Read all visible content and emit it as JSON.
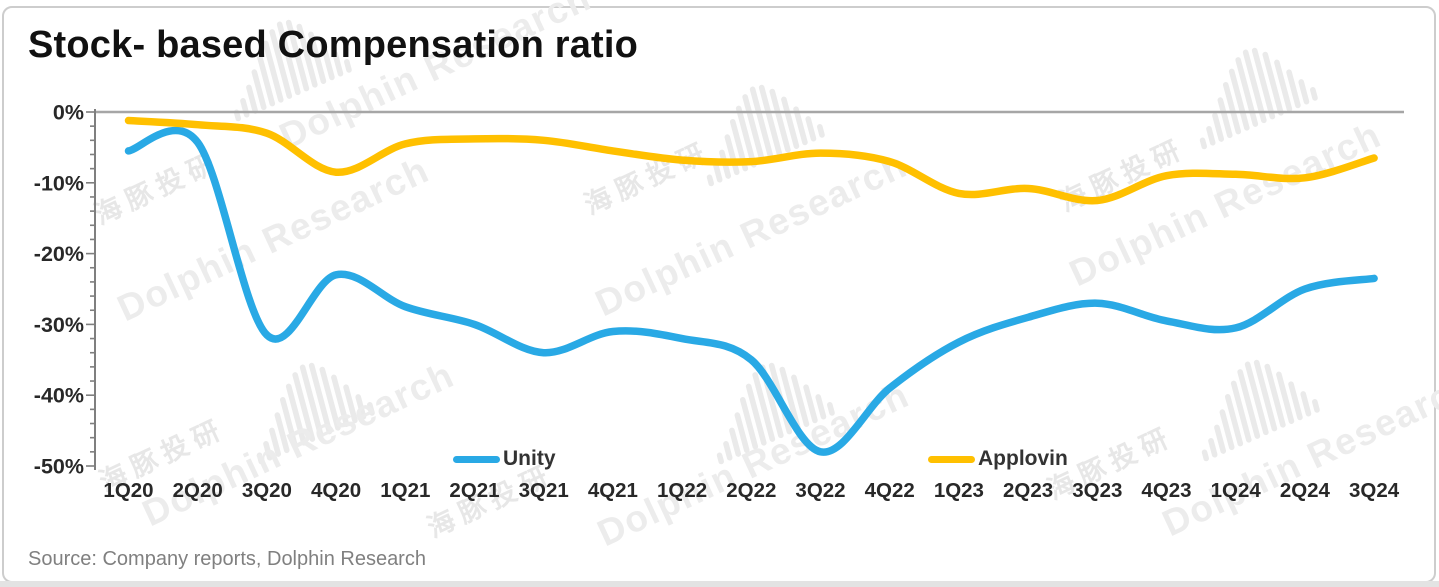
{
  "title": "Stock- based Compensation ratio",
  "source": "Source: Company reports, Dolphin Research",
  "watermark": {
    "en": "Dolphin Research",
    "zh": "海豚投研"
  },
  "colors": {
    "unity_line": "#29A9E5",
    "applovin_line": "#FFC000",
    "axis": "#7F7F7F",
    "zero_line": "#A6A6A6",
    "tick_label": "#282828",
    "title_text": "#111111",
    "source_text": "#808080",
    "watermark": "#EAEAEA"
  },
  "chart_data": {
    "type": "line",
    "title": "Stock- based Compensation ratio",
    "categories": [
      "1Q20",
      "2Q20",
      "3Q20",
      "4Q20",
      "1Q21",
      "2Q21",
      "3Q21",
      "4Q21",
      "1Q22",
      "2Q22",
      "3Q22",
      "4Q22",
      "1Q23",
      "2Q23",
      "3Q23",
      "4Q23",
      "1Q24",
      "2Q24",
      "3Q24"
    ],
    "series": [
      {
        "name": "Unity",
        "color": "#29A9E5",
        "values": [
          -5.5,
          -4.3,
          -31.5,
          -23,
          -27.5,
          -30,
          -34,
          -31,
          -32,
          -35,
          -48,
          -39,
          -32.5,
          -29,
          -27,
          -29.5,
          -30.5,
          -25,
          -23.5
        ]
      },
      {
        "name": "Applovin",
        "color": "#FFC000",
        "values": [
          -1.2,
          -1.8,
          -3,
          -8.5,
          -4.5,
          -3.8,
          -4,
          -5.5,
          -6.8,
          -7,
          -5.8,
          -7,
          -11.5,
          -10.8,
          -12.5,
          -9,
          -8.8,
          -9.3,
          -6.5
        ]
      }
    ],
    "xlabel": "",
    "ylabel": "",
    "ylim": [
      -50,
      0
    ],
    "yticks": [
      0,
      -10,
      -20,
      -30,
      -40,
      -50
    ],
    "ytick_labels": [
      "0%",
      "-10%",
      "-20%",
      "-30%",
      "-40%",
      "-50%"
    ],
    "minor_tick_step_percent": 2,
    "grid": false,
    "legend_position": "bottom-center-inside"
  }
}
